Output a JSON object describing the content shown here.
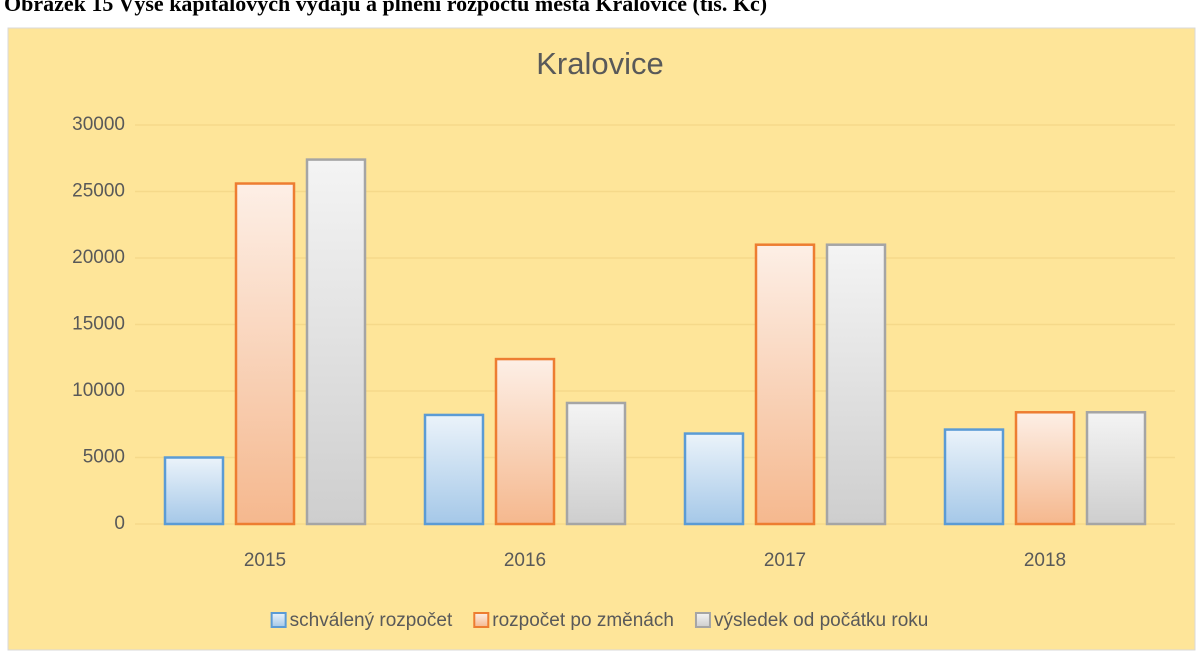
{
  "caption": "Obrázek 15 Výše kapitálových výdajů a plnění rozpočtu města Kralovice (tis. Kč)",
  "chart_data": {
    "type": "bar",
    "title": "Kralovice",
    "categories": [
      "2015",
      "2016",
      "2017",
      "2018"
    ],
    "series": [
      {
        "name": "schválený rozpočet",
        "color": "#5b9bd5",
        "values": [
          5000,
          8200,
          6800,
          7100
        ]
      },
      {
        "name": "rozpočet po změnách",
        "color": "#ed7d31",
        "values": [
          25600,
          12400,
          21000,
          8400
        ]
      },
      {
        "name": "výsledek od počátku roku",
        "color": "#a5a5a5",
        "values": [
          27400,
          9100,
          21000,
          8400
        ]
      }
    ],
    "ylim": [
      0,
      30000
    ],
    "yticks": [
      0,
      5000,
      10000,
      15000,
      20000,
      25000,
      30000
    ],
    "grid": true,
    "legend": "bottom",
    "background": "#fee599"
  }
}
